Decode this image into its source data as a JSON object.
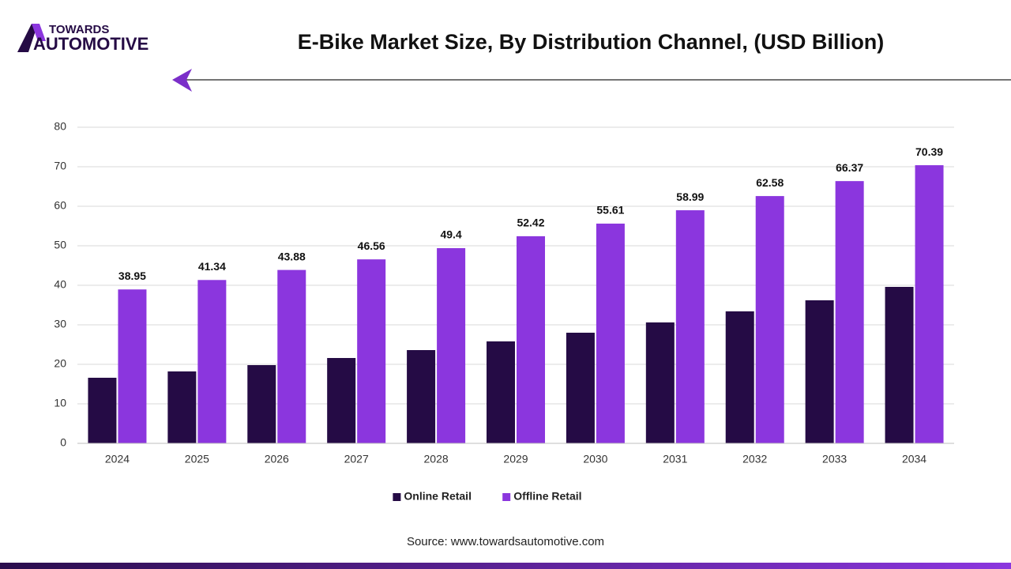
{
  "logo": {
    "line1": "TOWARDS",
    "line2": "AUTOMOTIVE"
  },
  "chart_data": {
    "type": "bar",
    "title": "E-Bike Market Size, By Distribution Channel, (USD Billion)",
    "categories": [
      "2024",
      "2025",
      "2026",
      "2027",
      "2028",
      "2029",
      "2030",
      "2031",
      "2032",
      "2033",
      "2034"
    ],
    "series": [
      {
        "name": "Online Retail",
        "color": "#250b45",
        "data_labels": false,
        "values": [
          16.6,
          18.2,
          19.8,
          21.6,
          23.6,
          25.8,
          28.0,
          30.6,
          33.4,
          36.2,
          39.6
        ]
      },
      {
        "name": "Offline Retail",
        "color": "#8b36de",
        "data_labels": true,
        "values": [
          38.95,
          41.34,
          43.88,
          46.56,
          49.4,
          52.42,
          55.61,
          58.99,
          62.58,
          66.37,
          70.39
        ]
      }
    ],
    "ylim": [
      0,
      80
    ],
    "yticks": [
      0,
      10,
      20,
      30,
      40,
      50,
      60,
      70,
      80
    ],
    "grid": true,
    "legend": "bottom",
    "source": "Source: www.towardsautomotive.com"
  }
}
